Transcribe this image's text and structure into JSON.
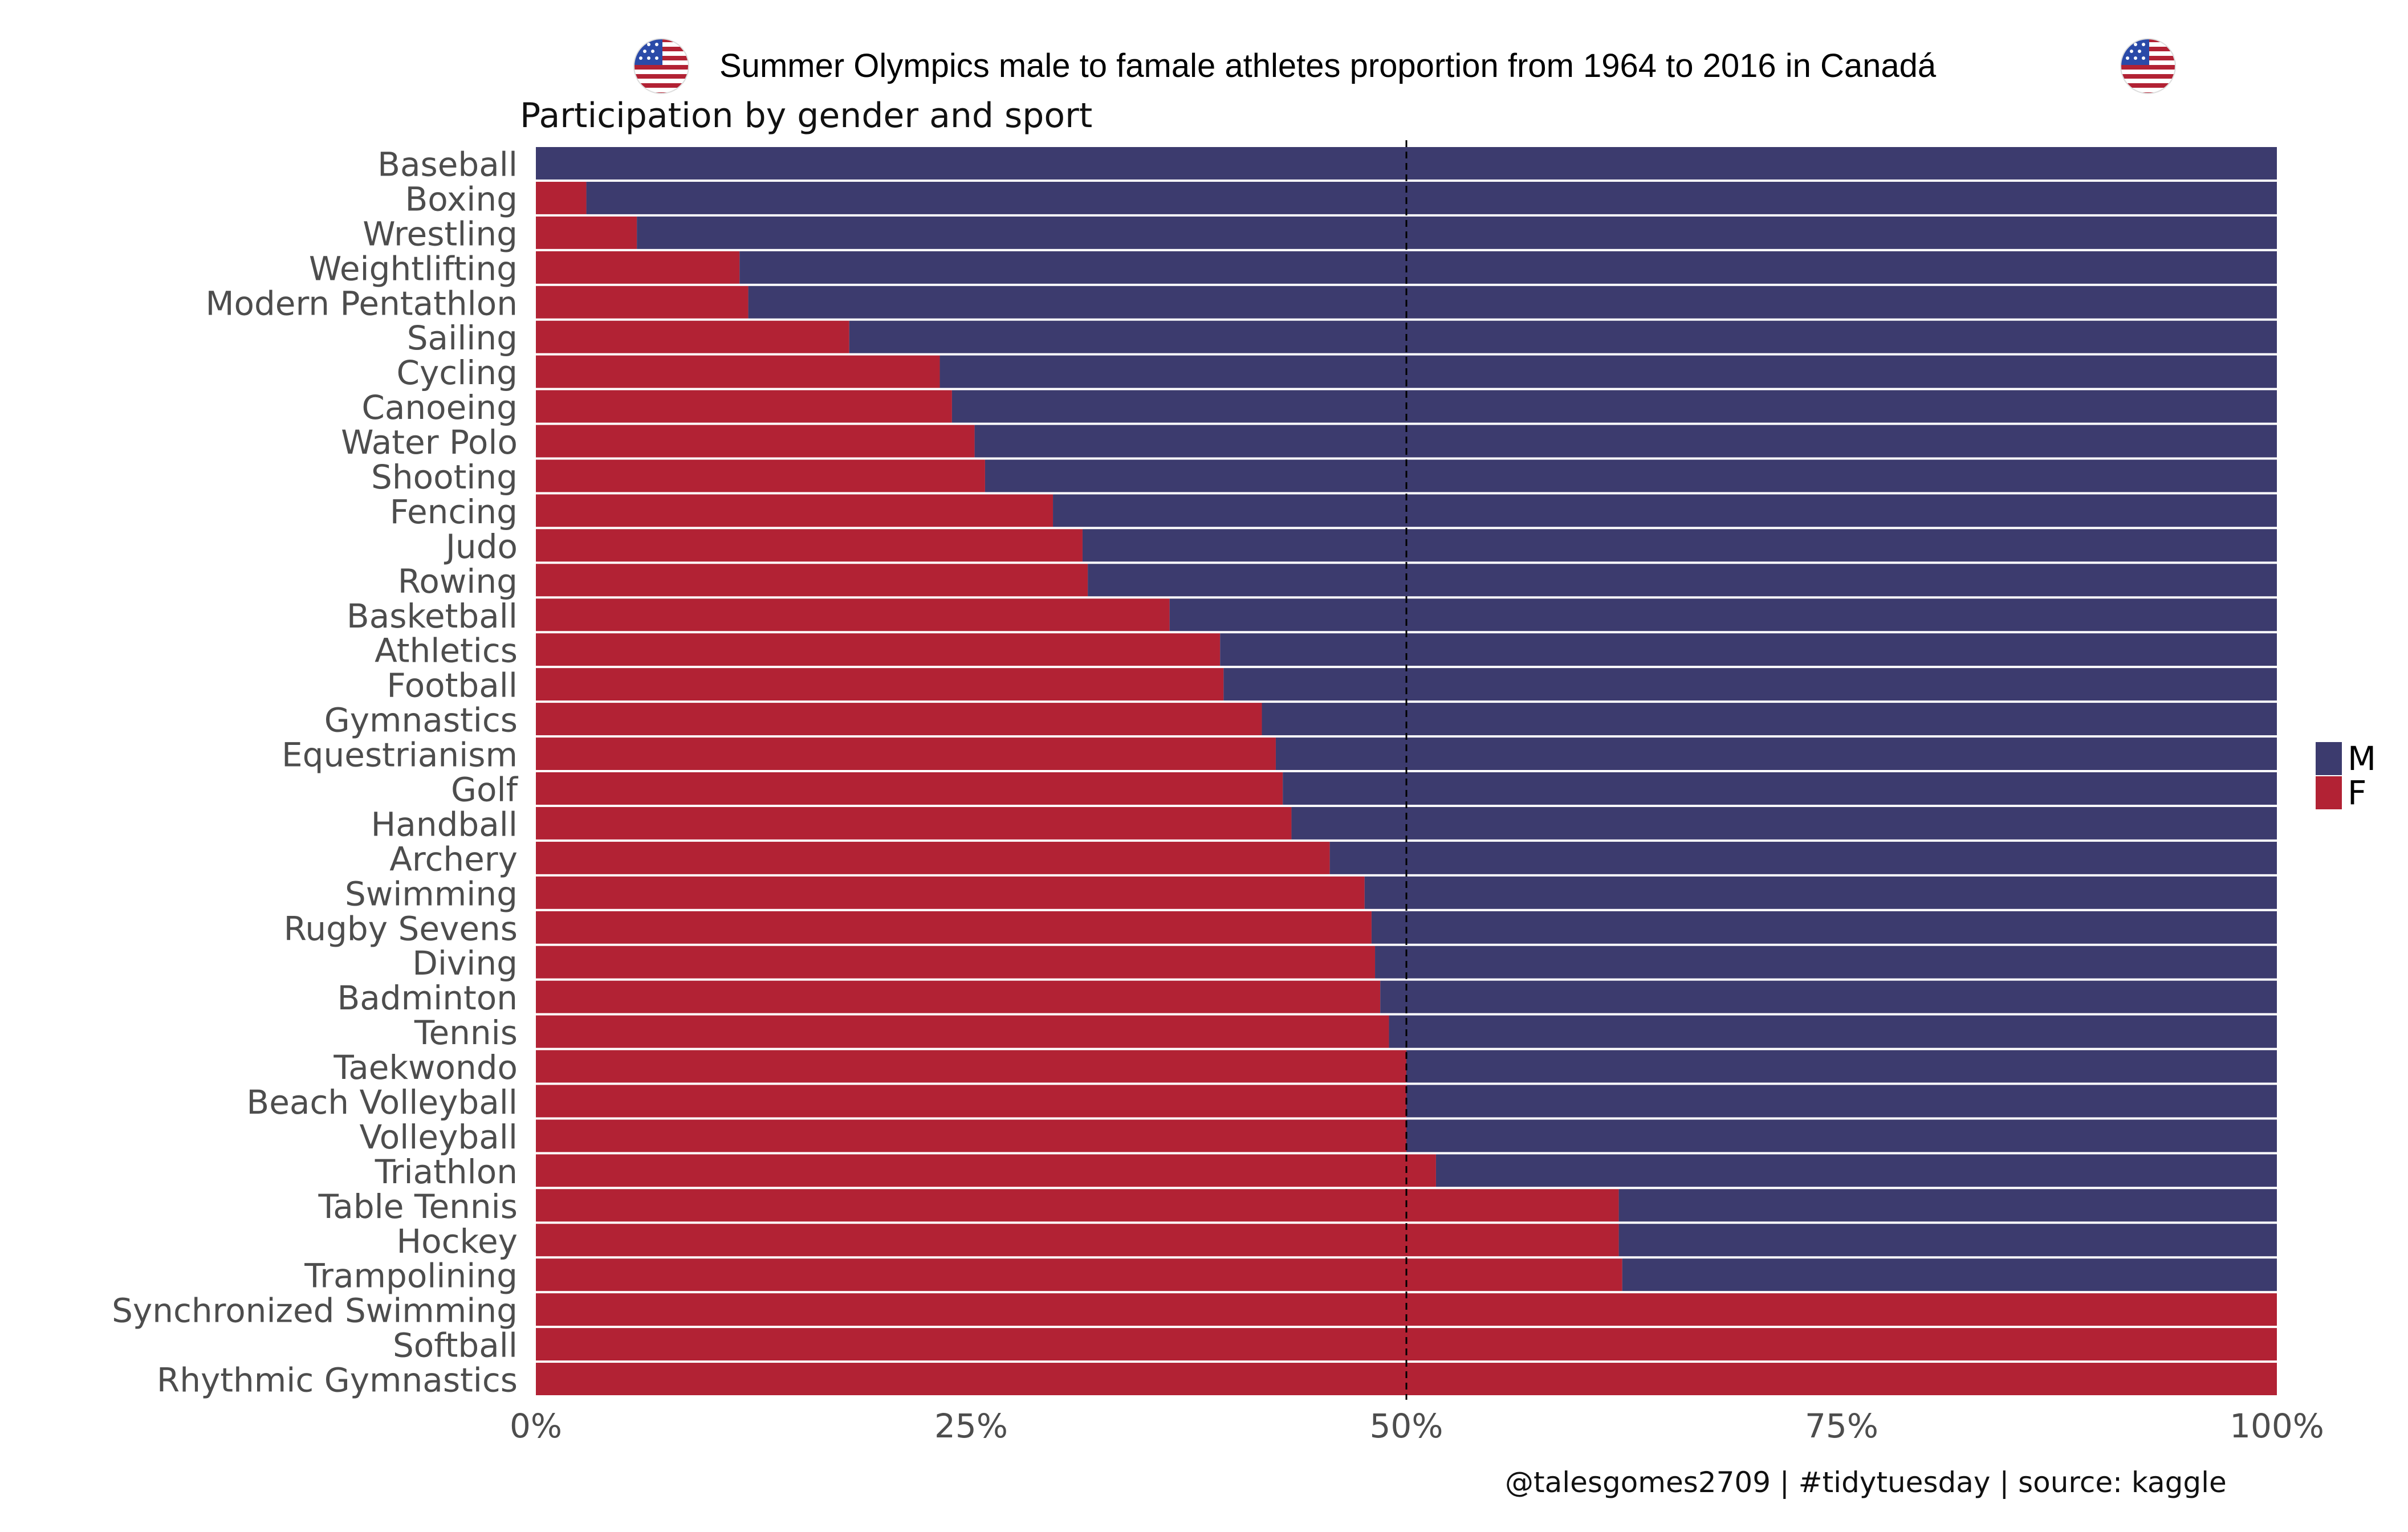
{
  "header": {
    "title": "Summer Olympics male to famale athletes proportion from 1964 to 2016 in Canadá",
    "subtitle": "Participation by gender and sport",
    "caption": "@talesgomes2709 | #tidytuesday | source: kaggle"
  },
  "colors": {
    "F": "#b22234",
    "M": "#3c3b6e",
    "background": "#ffffff",
    "reference_line": "#000000",
    "axis_text": "#4d4d4d"
  },
  "icons": {
    "left_flag": "us-flag-icon",
    "right_flag": "us-flag-icon"
  },
  "legend": [
    {
      "key": "M",
      "label": "M"
    },
    {
      "key": "F",
      "label": "F"
    }
  ],
  "chart_data": {
    "type": "bar",
    "orientation": "horizontal",
    "stacked": "percent",
    "title": "Summer Olympics male to famale athletes proportion from 1964 to 2016 in Canadá",
    "subtitle": "Participation by gender and sport",
    "xlabel": "",
    "ylabel": "",
    "xlim": [
      0,
      1
    ],
    "x_ticks": [
      {
        "value": 0,
        "label": "0%"
      },
      {
        "value": 0.25,
        "label": "25%"
      },
      {
        "value": 0.5,
        "label": "50%"
      },
      {
        "value": 0.75,
        "label": "75%"
      },
      {
        "value": 1,
        "label": "100%"
      }
    ],
    "reference_line": 0.5,
    "grid": false,
    "legend_position": "right",
    "categories": [
      "Baseball",
      "Boxing",
      "Wrestling",
      "Weightlifting",
      "Modern Pentathlon",
      "Sailing",
      "Cycling",
      "Canoeing",
      "Water Polo",
      "Shooting",
      "Fencing",
      "Judo",
      "Rowing",
      "Basketball",
      "Athletics",
      "Football",
      "Gymnastics",
      "Equestrianism",
      "Golf",
      "Handball",
      "Archery",
      "Swimming",
      "Rugby Sevens",
      "Diving",
      "Badminton",
      "Tennis",
      "Taekwondo",
      "Beach Volleyball",
      "Volleyball",
      "Triathlon",
      "Table Tennis",
      "Hockey",
      "Trampolining",
      "Synchronized Swimming",
      "Softball",
      "Rhythmic Gymnastics"
    ],
    "series": [
      {
        "name": "F",
        "values": [
          0.0,
          0.029,
          0.058,
          0.117,
          0.122,
          0.18,
          0.232,
          0.239,
          0.252,
          0.258,
          0.297,
          0.314,
          0.317,
          0.364,
          0.393,
          0.395,
          0.417,
          0.425,
          0.429,
          0.434,
          0.456,
          0.476,
          0.48,
          0.482,
          0.485,
          0.49,
          0.5,
          0.5,
          0.5,
          0.517,
          0.622,
          0.622,
          0.624,
          1.0,
          1.0,
          1.0
        ]
      },
      {
        "name": "M",
        "values": [
          1.0,
          0.971,
          0.942,
          0.883,
          0.878,
          0.82,
          0.768,
          0.761,
          0.748,
          0.742,
          0.703,
          0.686,
          0.683,
          0.636,
          0.607,
          0.605,
          0.583,
          0.575,
          0.571,
          0.566,
          0.544,
          0.524,
          0.52,
          0.518,
          0.515,
          0.51,
          0.5,
          0.5,
          0.5,
          0.483,
          0.378,
          0.378,
          0.376,
          0.0,
          0.0,
          0.0
        ]
      }
    ]
  }
}
